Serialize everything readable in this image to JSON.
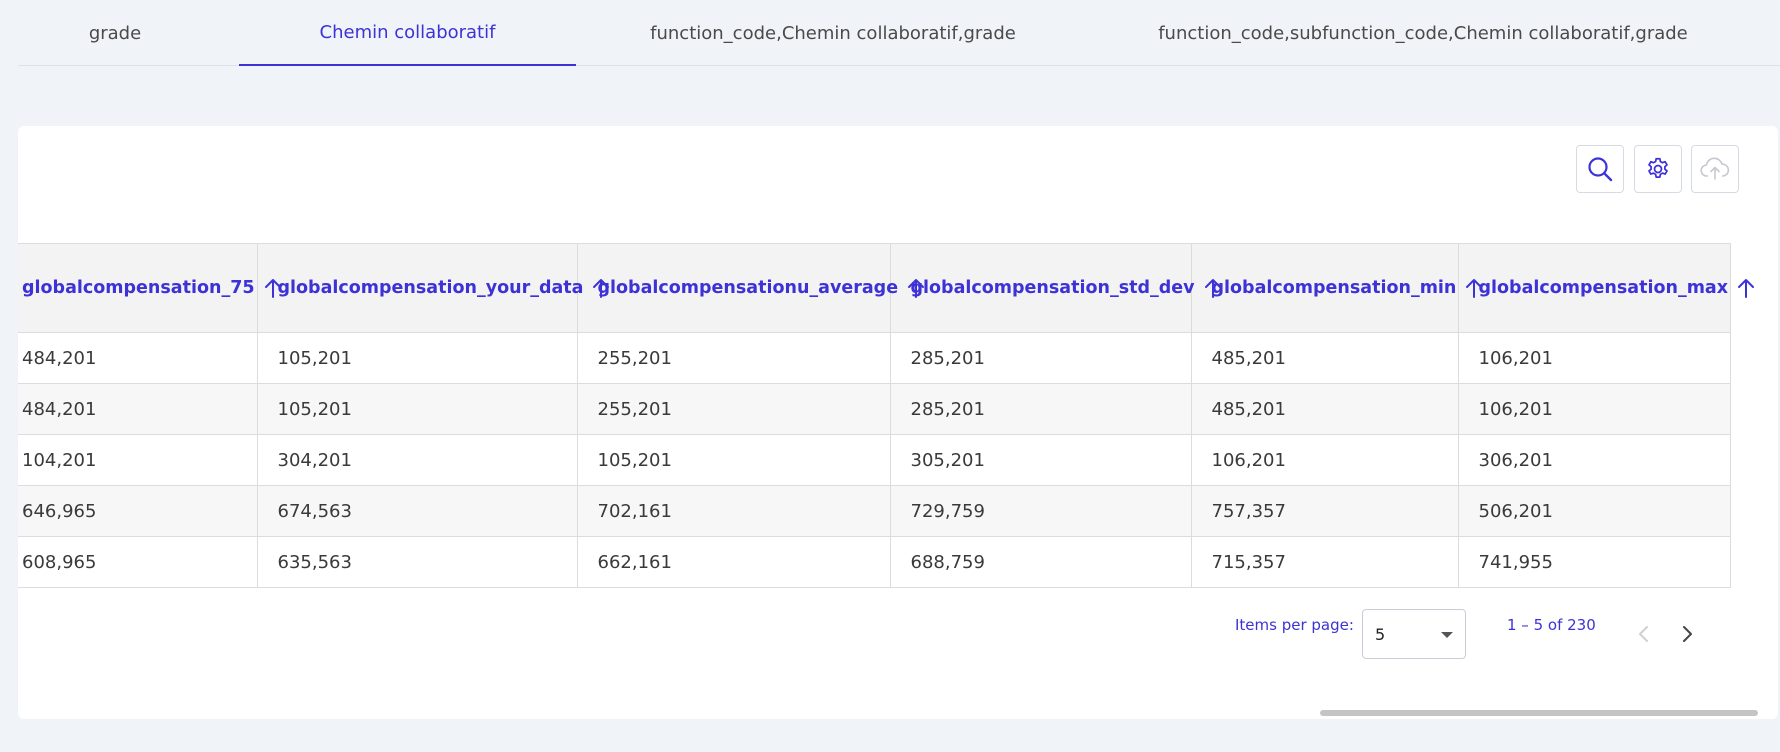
{
  "tabs": [
    {
      "label": "grade"
    },
    {
      "label": "Chemin collaboratif",
      "active": true
    },
    {
      "label": "function_code,Chemin collaboratif,grade"
    },
    {
      "label": "function_code,subfunction_code,Chemin collaboratif,grade"
    }
  ],
  "toolbar": {
    "search_icon": "search-icon",
    "settings_icon": "gear-icon",
    "upload_icon": "cloud-upload-icon"
  },
  "table": {
    "columns": [
      "globalcompensation_75",
      "globalcompensation_your_data",
      "globalcompensationu_average",
      "globalcompensation_std_dev",
      "globalcompensation_min",
      "globalcompensation_max"
    ],
    "rows": [
      [
        "484,201",
        "105,201",
        "255,201",
        "285,201",
        "485,201",
        "106,201"
      ],
      [
        "484,201",
        "105,201",
        "255,201",
        "285,201",
        "485,201",
        "106,201"
      ],
      [
        "104,201",
        "304,201",
        "105,201",
        "305,201",
        "106,201",
        "306,201"
      ],
      [
        "646,965",
        "674,563",
        "702,161",
        "729,759",
        "757,357",
        "506,201"
      ],
      [
        "608,965",
        "635,563",
        "662,161",
        "688,759",
        "715,357",
        "741,955"
      ]
    ]
  },
  "paginator": {
    "items_per_page_label": "Items per page:",
    "page_size": "5",
    "range_label": "1 – 5 of 230"
  },
  "colors": {
    "accent": "#3d32d6",
    "page_bg": "#f0f3f8"
  }
}
